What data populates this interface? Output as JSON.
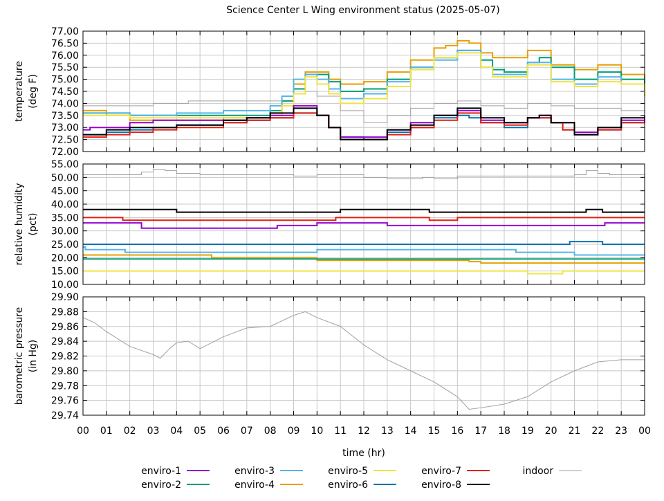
{
  "chart_data": {
    "type": "line",
    "title": "Science Center L Wing environment status (2025-05-07)",
    "xlabel": "time (hr)",
    "xlim": [
      0,
      24
    ],
    "xticks": [
      "00",
      "01",
      "02",
      "03",
      "04",
      "05",
      "06",
      "07",
      "08",
      "09",
      "10",
      "11",
      "12",
      "13",
      "14",
      "15",
      "16",
      "17",
      "18",
      "19",
      "20",
      "21",
      "22",
      "23",
      "00"
    ],
    "grid": true,
    "legend_placement": "bottom",
    "legend": [
      {
        "name": "enviro-1",
        "color": "#9400d3"
      },
      {
        "name": "enviro-2",
        "color": "#009e73"
      },
      {
        "name": "enviro-3",
        "color": "#56b4e9"
      },
      {
        "name": "enviro-4",
        "color": "#e69f00"
      },
      {
        "name": "enviro-5",
        "color": "#f0e442"
      },
      {
        "name": "enviro-6",
        "color": "#0072b2"
      },
      {
        "name": "enviro-7",
        "color": "#e51e10"
      },
      {
        "name": "enviro-8",
        "color": "#000000"
      },
      {
        "name": "indoor",
        "color": "#a0a0a0"
      }
    ],
    "panels": [
      {
        "ylabel": [
          "temperature",
          "(deg F)"
        ],
        "ylim": [
          72,
          77
        ],
        "ystep": 0.5,
        "decimals": 2,
        "step": true,
        "series": [
          {
            "name": "indoor",
            "x": [
              0,
              3,
              4.5,
              7,
              8,
              9,
              9.5,
              10,
              11,
              12,
              13,
              14,
              15,
              16,
              16.5,
              17,
              18,
              19,
              20,
              21,
              22,
              23,
              24
            ],
            "y": [
              73.9,
              74.0,
              74.1,
              74.1,
              74.1,
              74.4,
              74.5,
              74.3,
              73.7,
              73.2,
              73.5,
              73.8,
              74.0,
              74.1,
              74.1,
              73.9,
              73.8,
              74.0,
              73.9,
              73.8,
              73.8,
              73.7,
              73.7
            ]
          },
          {
            "name": "enviro-4",
            "x": [
              0,
              1,
              2,
              4,
              6,
              8,
              8.5,
              9,
              9.5,
              10,
              10.5,
              11,
              12,
              13,
              14,
              15,
              15.5,
              16,
              16.5,
              17,
              17.5,
              18,
              19,
              19.7,
              20,
              21,
              22,
              23,
              24
            ],
            "y": [
              73.7,
              73.5,
              73.3,
              73.3,
              73.4,
              73.6,
              74.1,
              74.8,
              75.3,
              75.3,
              75.0,
              74.8,
              74.9,
              75.3,
              75.8,
              76.3,
              76.4,
              76.6,
              76.5,
              76.1,
              75.9,
              75.9,
              76.2,
              76.2,
              75.6,
              75.4,
              75.6,
              75.2,
              74.5
            ]
          },
          {
            "name": "enviro-2",
            "x": [
              0,
              2,
              4,
              6,
              8,
              8.5,
              9,
              9.5,
              10,
              10.5,
              11,
              12,
              13,
              14,
              15,
              16,
              16.5,
              17,
              17.5,
              18,
              19,
              19.5,
              20,
              21,
              22,
              23,
              24
            ],
            "y": [
              73.6,
              73.5,
              73.5,
              73.5,
              73.7,
              74.1,
              74.6,
              75.2,
              75.2,
              74.9,
              74.5,
              74.6,
              75.0,
              75.5,
              75.9,
              76.2,
              76.2,
              75.8,
              75.4,
              75.3,
              75.7,
              75.9,
              75.5,
              75.0,
              75.3,
              75.0,
              74.6
            ]
          },
          {
            "name": "enviro-3",
            "x": [
              0,
              2,
              4,
              6,
              8,
              8.5,
              9,
              9.5,
              10,
              10.5,
              11,
              12,
              13,
              14,
              15,
              16,
              16.5,
              17,
              17.5,
              18,
              19,
              20,
              21,
              22,
              23,
              24
            ],
            "y": [
              73.6,
              73.5,
              73.6,
              73.7,
              73.9,
              74.3,
              75.0,
              75.2,
              75.0,
              74.6,
              74.2,
              74.4,
              74.9,
              75.5,
              75.8,
              76.2,
              76.2,
              75.5,
              75.2,
              75.2,
              75.7,
              75.0,
              74.8,
              75.1,
              74.8,
              74.6
            ]
          },
          {
            "name": "enviro-5",
            "x": [
              0,
              2,
              4,
              6,
              8,
              8.5,
              9,
              9.5,
              10,
              10.5,
              11,
              12,
              13,
              14,
              15,
              16,
              16.5,
              17,
              17.5,
              18,
              19,
              20,
              21,
              22,
              23,
              24
            ],
            "y": [
              73.5,
              73.4,
              73.4,
              73.4,
              73.5,
              73.9,
              74.4,
              75.1,
              74.8,
              74.4,
              74.0,
              74.2,
              74.7,
              75.4,
              75.9,
              76.1,
              76.1,
              75.5,
              75.1,
              75.1,
              75.6,
              74.9,
              74.7,
              74.9,
              74.8,
              74.3
            ]
          },
          {
            "name": "enviro-6",
            "x": [
              0,
              1,
              2,
              3,
              4,
              6,
              7,
              8,
              9,
              10,
              10.5,
              11,
              12,
              13,
              14,
              15,
              16,
              16.5,
              17,
              18,
              19,
              20,
              20.5,
              21,
              22,
              23,
              24
            ],
            "y": [
              72.7,
              72.8,
              72.9,
              73.0,
              73.1,
              73.2,
              73.3,
              73.4,
              73.6,
              73.5,
              73.0,
              72.6,
              72.5,
              72.8,
              73.0,
              73.4,
              73.5,
              73.4,
              73.2,
              73.0,
              73.4,
              73.2,
              72.9,
              72.7,
              72.9,
              73.2,
              73.2
            ]
          },
          {
            "name": "enviro-1",
            "x": [
              0,
              0.3,
              1,
              2,
              3,
              4,
              6,
              7,
              8,
              9,
              9.7,
              10,
              10.5,
              11,
              12,
              13,
              14,
              15,
              16,
              16.5,
              17,
              18,
              19,
              19.5,
              20,
              21,
              22,
              23,
              24
            ],
            "y": [
              72.9,
              73.0,
              73.0,
              73.2,
              73.3,
              73.3,
              73.3,
              73.4,
              73.5,
              73.9,
              73.9,
              73.5,
              73.0,
              72.6,
              72.6,
              72.9,
              73.2,
              73.5,
              73.7,
              73.7,
              73.3,
              73.2,
              73.4,
              73.5,
              73.2,
              72.8,
              73.0,
              73.3,
              73.5
            ]
          },
          {
            "name": "enviro-7",
            "x": [
              0,
              1,
              2,
              3,
              4,
              6,
              7,
              8,
              9,
              10,
              10.5,
              11,
              12,
              13,
              14,
              15,
              16,
              16.5,
              17,
              18,
              19,
              20,
              20.5,
              21,
              22,
              23,
              24
            ],
            "y": [
              72.6,
              72.7,
              72.8,
              72.9,
              73.0,
              73.2,
              73.3,
              73.4,
              73.6,
              73.5,
              73.0,
              72.5,
              72.5,
              72.7,
              73.0,
              73.3,
              73.6,
              73.6,
              73.2,
              73.1,
              73.4,
              73.2,
              72.9,
              72.7,
              72.9,
              73.2,
              73.3
            ]
          },
          {
            "name": "enviro-8",
            "x": [
              0,
              1,
              2,
              3,
              4,
              6,
              7,
              8,
              9,
              10,
              10.5,
              11,
              12,
              13,
              14,
              15,
              16,
              16.5,
              17,
              18,
              19,
              19.5,
              20,
              21,
              22,
              23,
              24
            ],
            "y": [
              72.7,
              72.9,
              73.0,
              73.0,
              73.1,
              73.3,
              73.4,
              73.6,
              73.8,
              73.5,
              73.0,
              72.5,
              72.5,
              72.9,
              73.1,
              73.5,
              73.8,
              73.8,
              73.4,
              73.2,
              73.4,
              73.5,
              73.2,
              72.7,
              73.0,
              73.4,
              73.4
            ]
          }
        ]
      },
      {
        "ylabel": [
          "relative humidity",
          "(pct)"
        ],
        "ylim": [
          10,
          55
        ],
        "ystep": 5,
        "decimals": 2,
        "step": true,
        "series": [
          {
            "name": "indoor",
            "x": [
              0,
              2.5,
              3,
              3.5,
              4,
              5,
              8,
              9,
              10,
              12,
              13,
              14,
              14.5,
              15,
              16,
              21,
              21.5,
              22,
              22.5,
              24
            ],
            "y": [
              51,
              52,
              53,
              52.5,
              51.5,
              51,
              51,
              50.5,
              51,
              50,
              49.5,
              49.5,
              50,
              49.5,
              50.5,
              51,
              52.5,
              51.5,
              51,
              50.8
            ]
          },
          {
            "name": "enviro-8",
            "x": [
              0,
              4,
              5,
              11,
              14.8,
              21.5,
              22.2,
              24
            ],
            "y": [
              38,
              37,
              37,
              38,
              37,
              38,
              37,
              37
            ]
          },
          {
            "name": "enviro-7",
            "x": [
              0,
              1.7,
              10.8,
              14.8,
              16,
              24
            ],
            "y": [
              35,
              34,
              35,
              34,
              35,
              35
            ]
          },
          {
            "name": "enviro-1",
            "x": [
              0,
              2.5,
              4.5,
              8.3,
              10,
              13,
              14.8,
              22.3,
              24
            ],
            "y": [
              33,
              31,
              31,
              32,
              33,
              32,
              32,
              33,
              33
            ]
          },
          {
            "name": "enviro-6",
            "x": [
              0,
              20.8,
              22.2,
              24
            ],
            "y": [
              25,
              26,
              25,
              25
            ]
          },
          {
            "name": "enviro-3",
            "x": [
              0,
              0.1,
              1.8,
              7.5,
              10,
              18.5,
              21,
              24
            ],
            "y": [
              24,
              23,
              22,
              22,
              23,
              22,
              21,
              21
            ]
          },
          {
            "name": "enviro-4",
            "x": [
              0,
              5.5,
              10,
              16.5,
              17,
              24
            ],
            "y": [
              21,
              20,
              19,
              18.5,
              18,
              18
            ]
          },
          {
            "name": "enviro-2",
            "x": [
              0,
              24
            ],
            "y": [
              19.5,
              19.5
            ]
          },
          {
            "name": "enviro-5",
            "x": [
              0,
              19,
              20.5,
              24
            ],
            "y": [
              15,
              14,
              15,
              15
            ]
          }
        ]
      },
      {
        "ylabel": [
          "barometric pressure",
          "(in Hg)"
        ],
        "ylim": [
          29.74,
          29.9
        ],
        "ystep": 0.02,
        "decimals": 2,
        "step": false,
        "series": [
          {
            "name": "indoor",
            "x": [
              0,
              0.5,
              1,
              2,
              3,
              3.3,
              3.7,
              4,
              4.5,
              5,
              6,
              7,
              8,
              9,
              9.5,
              10,
              11,
              12,
              13,
              14,
              15,
              16,
              16.5,
              17,
              18,
              19,
              20,
              21,
              22,
              23,
              24
            ],
            "y": [
              29.872,
              29.865,
              29.853,
              29.833,
              29.822,
              29.817,
              29.83,
              29.838,
              29.84,
              29.83,
              29.846,
              29.858,
              29.86,
              29.875,
              29.88,
              29.872,
              29.86,
              29.835,
              29.815,
              29.8,
              29.785,
              29.765,
              29.748,
              29.75,
              29.755,
              29.765,
              29.785,
              29.8,
              29.812,
              29.815,
              29.815
            ]
          }
        ]
      }
    ]
  }
}
